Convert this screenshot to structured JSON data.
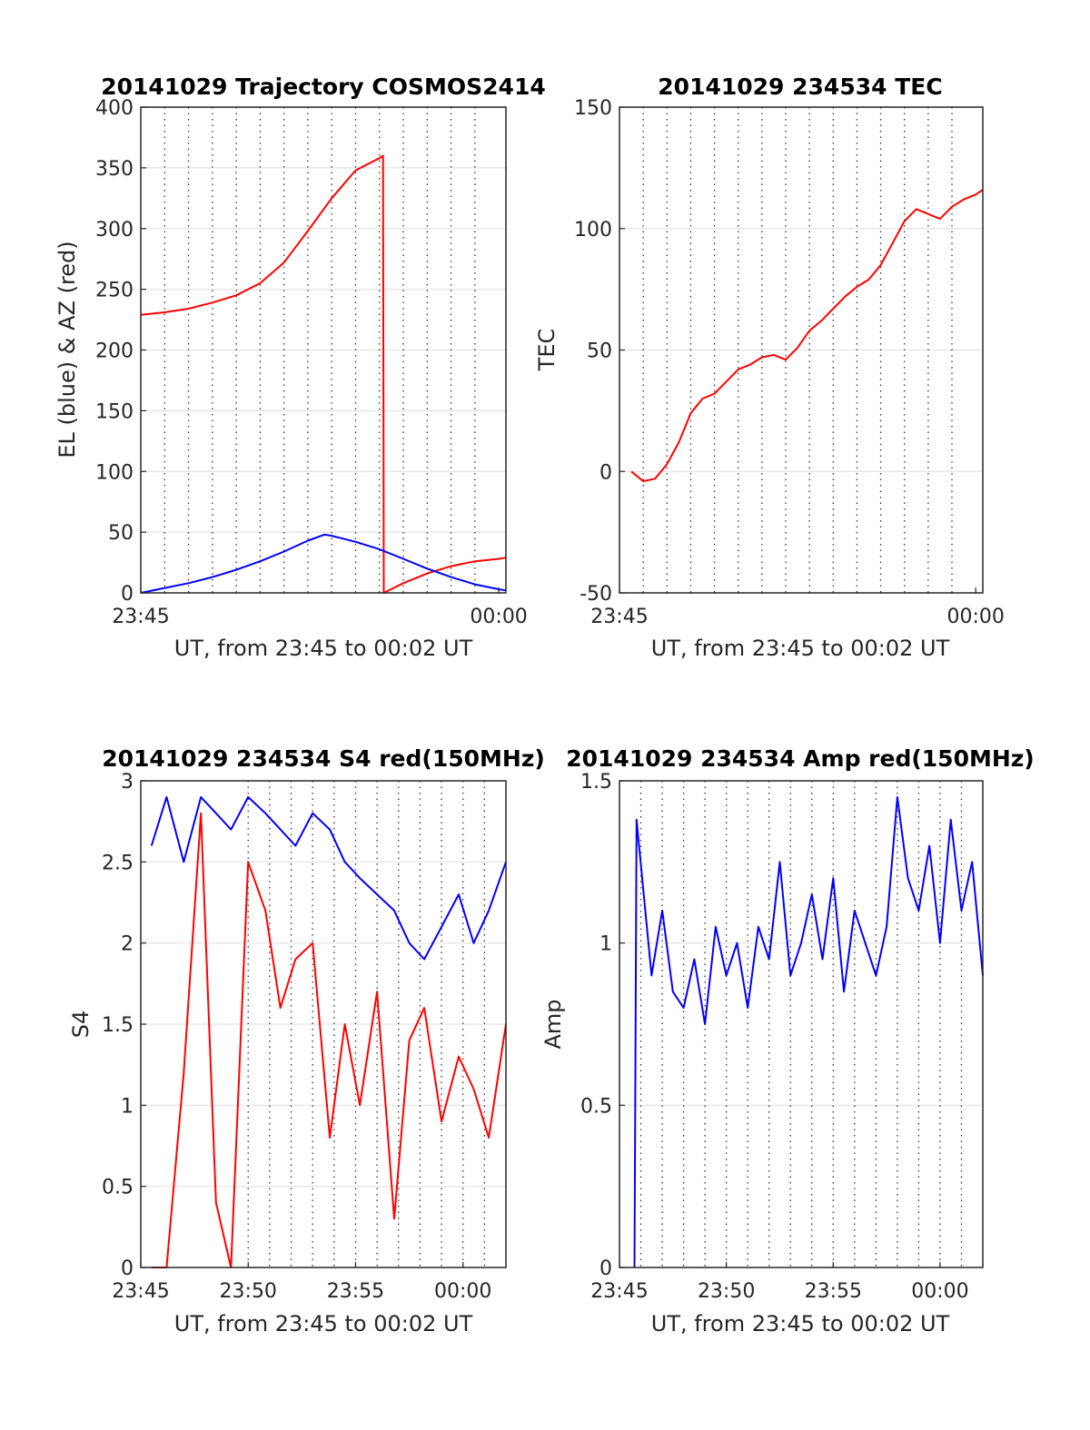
{
  "chart_data": [
    {
      "type": "line",
      "title": "20141029 Trajectory COSMOS2414",
      "xlabel": "UT, from 23:45 to 00:02 UT",
      "ylabel": "EL (blue) & AZ (red)",
      "xlim_min": [
        0,
        15.3
      ],
      "ylim": [
        0,
        400
      ],
      "yticks": [
        0,
        50,
        100,
        150,
        200,
        250,
        300,
        350,
        400
      ],
      "xtick_values": [
        0,
        15
      ],
      "xtick_labels": [
        "23:45",
        "00:00"
      ],
      "grid_x_min": [
        1,
        2,
        3,
        4,
        5,
        6,
        7,
        8,
        9,
        10,
        11,
        12,
        13,
        14
      ],
      "grid": true,
      "series": [
        {
          "color": "#ff0000",
          "x": [
            0,
            1,
            2,
            3,
            4,
            5,
            6,
            7,
            8,
            9,
            10,
            10.15,
            10.18,
            11,
            12,
            13,
            14,
            15,
            15.3
          ],
          "y": [
            229,
            231,
            234,
            239,
            245,
            255,
            272,
            298,
            325,
            348,
            358,
            360,
            0,
            8,
            16,
            22,
            26,
            28,
            29
          ]
        },
        {
          "color": "#0000ff",
          "x": [
            0,
            1,
            2,
            3,
            4,
            5,
            6,
            7,
            7.7,
            8,
            9,
            10,
            11,
            12,
            13,
            14,
            15,
            15.3
          ],
          "y": [
            0,
            4,
            8,
            13,
            19,
            26,
            34,
            43,
            48,
            47,
            42,
            36,
            28,
            20,
            13,
            7,
            3,
            2
          ]
        }
      ]
    },
    {
      "type": "line",
      "title": "20141029 234534 TEC",
      "xlabel": "UT, from 23:45 to 00:02 UT",
      "ylabel": "TEC",
      "xlim_min": [
        0,
        15.3
      ],
      "ylim": [
        -50,
        150
      ],
      "yticks": [
        -50,
        0,
        50,
        100,
        150
      ],
      "xtick_values": [
        0,
        15
      ],
      "xtick_labels": [
        "23:45",
        "00:00"
      ],
      "grid_x_min": [
        1,
        2,
        3,
        4,
        5,
        6,
        7,
        8,
        9,
        10,
        11,
        12,
        13,
        14
      ],
      "grid": true,
      "series": [
        {
          "color": "#ff0000",
          "x": [
            0.5,
            1,
            1.5,
            2,
            2.5,
            3,
            3.5,
            4,
            4.5,
            5,
            5.5,
            6,
            6.5,
            7,
            7.5,
            8,
            8.5,
            9,
            9.5,
            10,
            10.5,
            11,
            11.5,
            12,
            12.5,
            13,
            13.5,
            14,
            14.5,
            15,
            15.3
          ],
          "y": [
            0,
            -4,
            -3,
            3,
            12,
            24,
            30,
            32,
            37,
            42,
            44,
            47,
            48,
            46,
            51,
            58,
            62,
            67,
            72,
            76,
            79,
            85,
            94,
            103,
            108,
            106,
            104,
            109,
            112,
            114,
            116
          ]
        }
      ]
    },
    {
      "type": "line",
      "title": "20141029 234534 S4 red(150MHz)",
      "xlabel": "UT, from 23:45 to 00:02 UT",
      "ylabel": "S4",
      "xlim_min": [
        0,
        17
      ],
      "ylim": [
        0,
        3
      ],
      "yticks": [
        0,
        0.5,
        1,
        1.5,
        2,
        2.5,
        3
      ],
      "xtick_values": [
        0,
        5,
        10,
        15
      ],
      "xtick_labels": [
        "23:45",
        "23:50",
        "23:55",
        "00:00"
      ],
      "grid_x_min": [
        5,
        6,
        7,
        8,
        9,
        10,
        11,
        12,
        13,
        14,
        15,
        16
      ],
      "grid": true,
      "series": [
        {
          "color": "#0000ff",
          "x": [
            0.5,
            1.2,
            2,
            2.8,
            3.5,
            4.2,
            5,
            5.8,
            6.5,
            7.2,
            8,
            8.8,
            9.5,
            10.2,
            11,
            11.8,
            12.5,
            13.2,
            14,
            14.8,
            15.5,
            16.2,
            17
          ],
          "y": [
            2.6,
            2.9,
            2.5,
            2.9,
            2.8,
            2.7,
            2.9,
            2.8,
            2.7,
            2.6,
            2.8,
            2.7,
            2.5,
            2.4,
            2.3,
            2.2,
            2.0,
            1.9,
            2.1,
            2.3,
            2.0,
            2.2,
            2.5
          ]
        },
        {
          "color": "#ff0000",
          "x": [
            0.5,
            1.2,
            2,
            2.8,
            3.5,
            4.2,
            5,
            5.8,
            6.5,
            7.2,
            8,
            8.8,
            9.5,
            10.2,
            11,
            11.8,
            12.5,
            13.2,
            14,
            14.8,
            15.5,
            16.2,
            17
          ],
          "y": [
            0,
            0,
            1.2,
            2.8,
            0.4,
            0,
            2.5,
            2.2,
            1.6,
            1.9,
            2.0,
            0.8,
            1.5,
            1.0,
            1.7,
            0.3,
            1.4,
            1.6,
            0.9,
            1.3,
            1.1,
            0.8,
            1.5
          ]
        }
      ]
    },
    {
      "type": "line",
      "title": "20141029 234534 Amp red(150MHz)",
      "xlabel": "UT, from 23:45 to 00:02 UT",
      "ylabel": "Amp",
      "xlim_min": [
        0,
        17
      ],
      "ylim": [
        0,
        1.5
      ],
      "yticks": [
        0,
        0.5,
        1,
        1.5
      ],
      "xtick_values": [
        0,
        5,
        10,
        15
      ],
      "xtick_labels": [
        "23:45",
        "23:50",
        "23:55",
        "00:00"
      ],
      "grid_x_min": [
        1,
        2,
        3,
        4,
        5,
        6,
        7,
        8,
        9,
        10,
        11,
        12,
        13,
        14,
        15,
        16
      ],
      "grid": true,
      "series": [
        {
          "color": "#0000ff",
          "x": [
            0.7,
            0.8,
            1.5,
            2,
            2.5,
            3,
            3.5,
            4,
            4.5,
            5,
            5.5,
            6,
            6.5,
            7,
            7.5,
            8,
            8.5,
            9,
            9.5,
            10,
            10.5,
            11,
            11.5,
            12,
            12.5,
            13,
            13.5,
            14,
            14.5,
            15,
            15.5,
            16,
            16.5,
            17
          ],
          "y": [
            0,
            1.38,
            0.9,
            1.1,
            0.85,
            0.8,
            0.95,
            0.75,
            1.05,
            0.9,
            1.0,
            0.8,
            1.05,
            0.95,
            1.25,
            0.9,
            1.0,
            1.15,
            0.95,
            1.2,
            0.85,
            1.1,
            1.0,
            0.9,
            1.05,
            1.45,
            1.2,
            1.1,
            1.3,
            1.0,
            1.38,
            1.1,
            1.25,
            0.9
          ]
        }
      ]
    }
  ]
}
